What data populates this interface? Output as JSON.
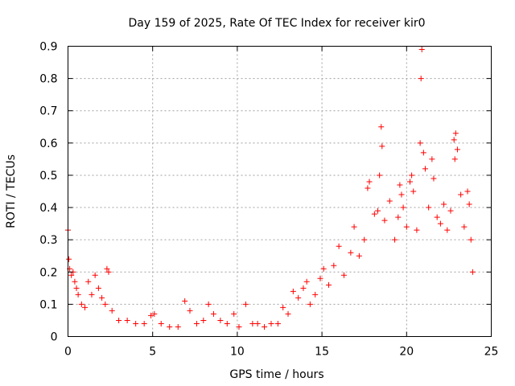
{
  "chart_data": {
    "type": "scatter",
    "title": "Day 159 of 2025, Rate Of TEC Index for receiver kir0",
    "xlabel": "GPS time / hours",
    "ylabel": "ROTI / TECUs",
    "xlim": [
      0,
      25
    ],
    "ylim": [
      0,
      0.9
    ],
    "xticks": [
      0,
      5,
      10,
      15,
      20,
      25
    ],
    "xtick_labels": [
      "0",
      "5",
      "10",
      "15",
      "20",
      "25"
    ],
    "yticks": [
      0,
      0.1,
      0.2,
      0.3,
      0.4,
      0.5,
      0.6,
      0.7,
      0.8,
      0.9
    ],
    "ytick_labels": [
      "0",
      "0.1",
      "0.2",
      "0.3",
      "0.4",
      "0.5",
      "0.6",
      "0.7",
      "0.8",
      "0.9"
    ],
    "grid": true,
    "marker": "+",
    "color": "#ff0000",
    "series": [
      {
        "name": "ROTI",
        "points": [
          [
            0.0,
            0.33
          ],
          [
            0.05,
            0.24
          ],
          [
            0.1,
            0.21
          ],
          [
            0.2,
            0.19
          ],
          [
            0.3,
            0.2
          ],
          [
            0.4,
            0.17
          ],
          [
            0.5,
            0.15
          ],
          [
            0.6,
            0.13
          ],
          [
            0.8,
            0.1
          ],
          [
            1.0,
            0.09
          ],
          [
            1.2,
            0.17
          ],
          [
            1.4,
            0.13
          ],
          [
            1.6,
            0.19
          ],
          [
            1.8,
            0.15
          ],
          [
            2.0,
            0.12
          ],
          [
            2.2,
            0.1
          ],
          [
            2.3,
            0.21
          ],
          [
            2.4,
            0.2
          ],
          [
            2.6,
            0.08
          ],
          [
            3.0,
            0.05
          ],
          [
            3.5,
            0.05
          ],
          [
            4.0,
            0.04
          ],
          [
            4.5,
            0.04
          ],
          [
            4.9,
            0.065
          ],
          [
            5.1,
            0.07
          ],
          [
            5.5,
            0.04
          ],
          [
            6.0,
            0.03
          ],
          [
            6.5,
            0.03
          ],
          [
            6.9,
            0.11
          ],
          [
            7.2,
            0.08
          ],
          [
            7.6,
            0.04
          ],
          [
            8.0,
            0.05
          ],
          [
            8.3,
            0.1
          ],
          [
            8.6,
            0.07
          ],
          [
            9.0,
            0.05
          ],
          [
            9.4,
            0.04
          ],
          [
            9.8,
            0.07
          ],
          [
            10.1,
            0.03
          ],
          [
            10.5,
            0.1
          ],
          [
            10.9,
            0.04
          ],
          [
            11.2,
            0.04
          ],
          [
            11.6,
            0.03
          ],
          [
            12.0,
            0.04
          ],
          [
            12.4,
            0.04
          ],
          [
            12.7,
            0.09
          ],
          [
            13.0,
            0.07
          ],
          [
            13.3,
            0.14
          ],
          [
            13.6,
            0.12
          ],
          [
            13.9,
            0.15
          ],
          [
            14.1,
            0.17
          ],
          [
            14.3,
            0.1
          ],
          [
            14.6,
            0.13
          ],
          [
            14.9,
            0.18
          ],
          [
            15.1,
            0.21
          ],
          [
            15.4,
            0.16
          ],
          [
            15.7,
            0.22
          ],
          [
            16.0,
            0.28
          ],
          [
            16.3,
            0.19
          ],
          [
            16.7,
            0.26
          ],
          [
            16.9,
            0.34
          ],
          [
            17.2,
            0.25
          ],
          [
            17.5,
            0.3
          ],
          [
            17.7,
            0.46
          ],
          [
            17.8,
            0.48
          ],
          [
            18.1,
            0.38
          ],
          [
            18.3,
            0.39
          ],
          [
            18.4,
            0.5
          ],
          [
            18.5,
            0.65
          ],
          [
            18.55,
            0.59
          ],
          [
            18.7,
            0.36
          ],
          [
            19.0,
            0.42
          ],
          [
            19.3,
            0.3
          ],
          [
            19.5,
            0.37
          ],
          [
            19.6,
            0.47
          ],
          [
            19.7,
            0.44
          ],
          [
            19.8,
            0.4
          ],
          [
            20.0,
            0.34
          ],
          [
            20.2,
            0.48
          ],
          [
            20.3,
            0.5
          ],
          [
            20.4,
            0.45
          ],
          [
            20.6,
            0.33
          ],
          [
            20.8,
            0.6
          ],
          [
            20.85,
            0.8
          ],
          [
            20.9,
            0.89
          ],
          [
            21.0,
            0.57
          ],
          [
            21.1,
            0.52
          ],
          [
            21.3,
            0.4
          ],
          [
            21.5,
            0.55
          ],
          [
            21.6,
            0.49
          ],
          [
            21.8,
            0.37
          ],
          [
            22.0,
            0.35
          ],
          [
            22.2,
            0.41
          ],
          [
            22.4,
            0.33
          ],
          [
            22.6,
            0.39
          ],
          [
            22.8,
            0.61
          ],
          [
            22.85,
            0.55
          ],
          [
            22.9,
            0.63
          ],
          [
            23.0,
            0.58
          ],
          [
            23.2,
            0.44
          ],
          [
            23.4,
            0.34
          ],
          [
            23.6,
            0.45
          ],
          [
            23.7,
            0.41
          ],
          [
            23.8,
            0.3
          ],
          [
            23.9,
            0.2
          ]
        ]
      }
    ]
  }
}
